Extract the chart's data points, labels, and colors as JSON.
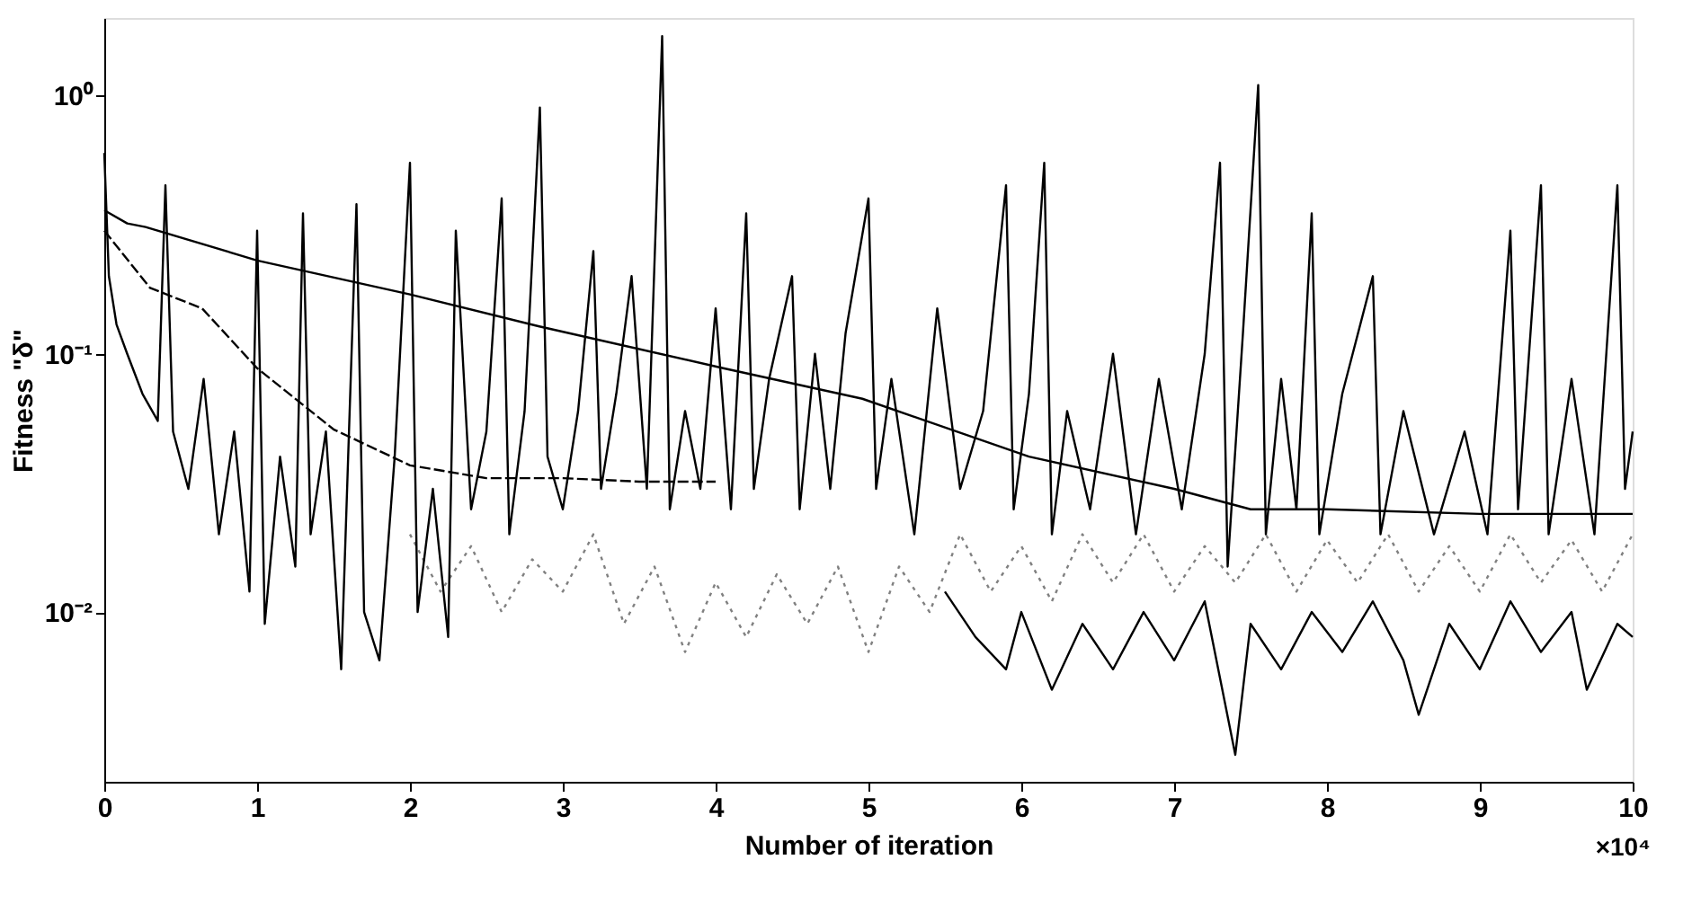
{
  "chart_data": {
    "type": "line",
    "xlabel": "Number of iteration",
    "ylabel": "Fitness \"δ\"",
    "annotations": [
      "×10⁴"
    ],
    "log": "y",
    "grid": false,
    "marker": "none",
    "xlim": [
      0,
      10
    ],
    "xticks": [
      0,
      1,
      2,
      3,
      4,
      5,
      6,
      7,
      8,
      9,
      10
    ],
    "ylim": [
      0.0022,
      2.0
    ],
    "yticks": [
      {
        "value": 0.01,
        "label": "10⁻²"
      },
      {
        "value": 0.1,
        "label": "10⁻¹"
      },
      {
        "value": 1,
        "label": "10⁰"
      }
    ],
    "series": [
      {
        "color": "#808080",
        "line_style": "dotted",
        "x": [
          2.0,
          2.2,
          2.4,
          2.6,
          2.8,
          3.0,
          3.2,
          3.4,
          3.6,
          3.8,
          4.0,
          4.2,
          4.4,
          4.6,
          4.8,
          5.0,
          5.2,
          5.4,
          5.6,
          5.8,
          6.0,
          6.2,
          6.4,
          6.6,
          6.8,
          7.0,
          7.2,
          7.4,
          7.6,
          7.8,
          8.0,
          8.2,
          8.4,
          8.6,
          8.8,
          9.0,
          9.2,
          9.4,
          9.6,
          9.8,
          10.0
        ],
        "values": [
          0.02,
          0.012,
          0.018,
          0.01,
          0.016,
          0.012,
          0.02,
          0.009,
          0.015,
          0.007,
          0.013,
          0.008,
          0.014,
          0.009,
          0.015,
          0.007,
          0.015,
          0.01,
          0.02,
          0.012,
          0.018,
          0.011,
          0.02,
          0.013,
          0.02,
          0.012,
          0.018,
          0.013,
          0.02,
          0.012,
          0.019,
          0.013,
          0.02,
          0.012,
          0.018,
          0.012,
          0.02,
          0.013,
          0.019,
          0.012,
          0.02
        ]
      },
      {
        "color": "#000000",
        "line_style": "solid",
        "x": [
          5.5,
          5.7,
          5.9,
          6.0,
          6.2,
          6.4,
          6.6,
          6.8,
          7.0,
          7.2,
          7.4,
          7.5,
          7.7,
          7.9,
          8.1,
          8.3,
          8.5,
          8.6,
          8.8,
          9.0,
          9.2,
          9.4,
          9.6,
          9.7,
          9.9,
          10.0
        ],
        "values": [
          0.012,
          0.008,
          0.006,
          0.01,
          0.005,
          0.009,
          0.006,
          0.01,
          0.0065,
          0.011,
          0.0028,
          0.009,
          0.006,
          0.01,
          0.007,
          0.011,
          0.0065,
          0.004,
          0.009,
          0.006,
          0.011,
          0.007,
          0.01,
          0.005,
          0.009,
          0.008
        ]
      },
      {
        "color": "#000000",
        "line_style": "solid",
        "x": [
          0,
          0.03,
          0.08,
          0.15,
          0.25,
          0.35,
          0.4,
          0.45,
          0.55,
          0.65,
          0.75,
          0.85,
          0.95,
          1.0,
          1.05,
          1.15,
          1.25,
          1.3,
          1.35,
          1.45,
          1.55,
          1.65,
          1.7,
          1.8,
          1.9,
          2.0,
          2.05,
          2.15,
          2.25,
          2.3,
          2.4,
          2.5,
          2.6,
          2.65,
          2.75,
          2.85,
          2.9,
          3.0,
          3.1,
          3.2,
          3.25,
          3.35,
          3.45,
          3.55,
          3.65,
          3.7,
          3.8,
          3.9,
          4.0,
          4.1,
          4.2,
          4.25,
          4.35,
          4.5,
          4.55,
          4.65,
          4.75,
          4.85,
          5.0,
          5.05,
          5.15,
          5.3,
          5.45,
          5.6,
          5.75,
          5.9,
          5.95,
          6.05,
          6.15,
          6.2,
          6.3,
          6.45,
          6.6,
          6.75,
          6.9,
          7.05,
          7.2,
          7.3,
          7.35,
          7.45,
          7.55,
          7.6,
          7.7,
          7.8,
          7.9,
          7.95,
          8.1,
          8.3,
          8.35,
          8.5,
          8.7,
          8.9,
          9.05,
          9.2,
          9.25,
          9.4,
          9.45,
          9.6,
          9.75,
          9.9,
          9.95,
          10.0
        ],
        "values": [
          0.6,
          0.2,
          0.13,
          0.1,
          0.07,
          0.055,
          0.45,
          0.05,
          0.03,
          0.08,
          0.02,
          0.05,
          0.012,
          0.3,
          0.009,
          0.04,
          0.015,
          0.35,
          0.02,
          0.05,
          0.006,
          0.38,
          0.01,
          0.0065,
          0.04,
          0.55,
          0.01,
          0.03,
          0.008,
          0.3,
          0.025,
          0.05,
          0.4,
          0.02,
          0.06,
          0.9,
          0.04,
          0.025,
          0.06,
          0.25,
          0.03,
          0.07,
          0.2,
          0.03,
          1.7,
          0.025,
          0.06,
          0.03,
          0.15,
          0.025,
          0.35,
          0.03,
          0.08,
          0.2,
          0.025,
          0.1,
          0.03,
          0.12,
          0.4,
          0.03,
          0.08,
          0.02,
          0.15,
          0.03,
          0.06,
          0.45,
          0.025,
          0.07,
          0.55,
          0.02,
          0.06,
          0.025,
          0.1,
          0.02,
          0.08,
          0.025,
          0.1,
          0.55,
          0.015,
          0.12,
          1.1,
          0.02,
          0.08,
          0.025,
          0.35,
          0.02,
          0.07,
          0.2,
          0.02,
          0.06,
          0.02,
          0.05,
          0.02,
          0.3,
          0.025,
          0.45,
          0.02,
          0.08,
          0.02,
          0.45,
          0.03,
          0.05
        ]
      },
      {
        "color": "#000000",
        "line_style": "dashed",
        "x": [
          0,
          0.3,
          0.64,
          1.0,
          1.5,
          2.0,
          2.5,
          3.0,
          3.5,
          4.0
        ],
        "values": [
          0.3,
          0.18,
          0.15,
          0.088,
          0.051,
          0.037,
          0.033,
          0.033,
          0.032,
          0.032
        ]
      },
      {
        "color": "#000000",
        "line_style": "solid",
        "x": [
          0,
          0.15,
          0.27,
          1.0,
          2.0,
          2.84,
          4.05,
          4.96,
          6.05,
          7.0,
          7.5,
          8.0,
          9.0,
          10.0
        ],
        "values": [
          0.36,
          0.32,
          0.31,
          0.23,
          0.17,
          0.128,
          0.088,
          0.067,
          0.04,
          0.03,
          0.025,
          0.025,
          0.024,
          0.024
        ]
      }
    ]
  }
}
